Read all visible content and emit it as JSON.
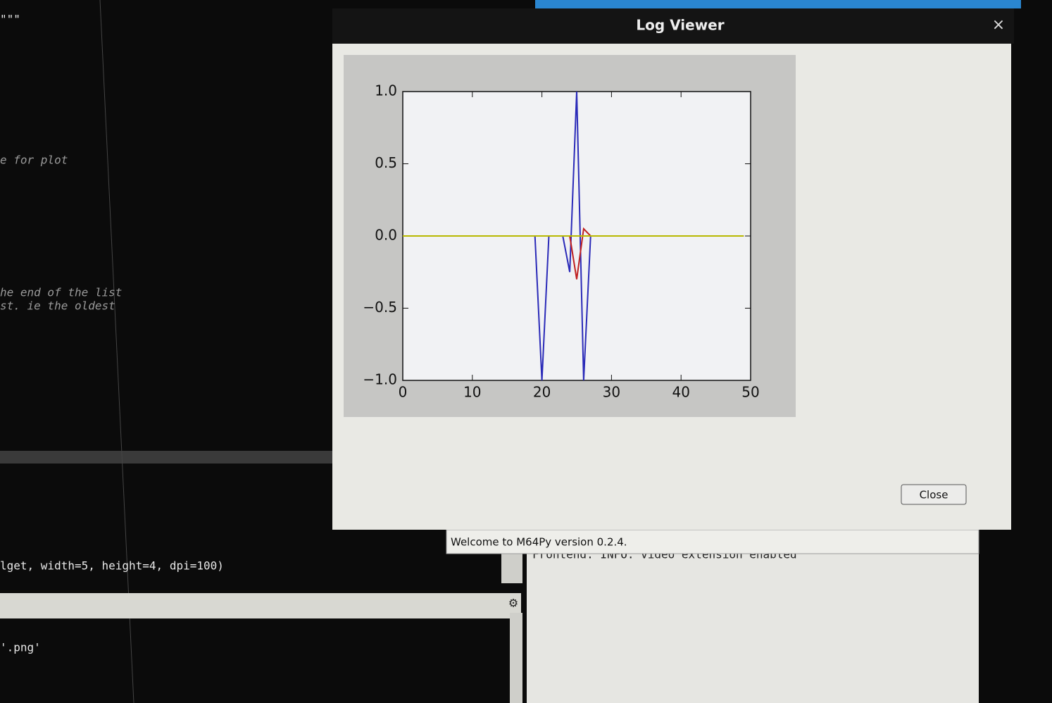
{
  "editor": {
    "lines": [
      "\"\"\"",
      "e for plot",
      "he end of the list",
      "st. ie the oldest",
      "lget, width=5, height=4, dpi=100)",
      "'.png'"
    ]
  },
  "window": {
    "title": "Log Viewer",
    "close_icon": "×",
    "close_button": "Close"
  },
  "chart_data": {
    "type": "line",
    "x": [
      0,
      1,
      2,
      3,
      4,
      5,
      6,
      7,
      8,
      9,
      10,
      11,
      12,
      13,
      14,
      15,
      16,
      17,
      18,
      19,
      20,
      21,
      22,
      23,
      24,
      25,
      26,
      27,
      28,
      29,
      30,
      31,
      32,
      33,
      34,
      35,
      36,
      37,
      38,
      39,
      40,
      41,
      42,
      43,
      44,
      45,
      46,
      47,
      48,
      49
    ],
    "series": [
      {
        "color": "#2a2ab8",
        "values": [
          0,
          0,
          0,
          0,
          0,
          0,
          0,
          0,
          0,
          0,
          0,
          0,
          0,
          0,
          0,
          0,
          0,
          0,
          0,
          0,
          -1,
          0,
          0,
          0,
          -0.25,
          1.0,
          -1.0,
          0,
          0,
          0,
          0,
          0,
          0,
          0,
          0,
          0,
          0,
          0,
          0,
          0,
          0,
          0,
          0,
          0,
          0,
          0,
          0,
          0,
          0,
          0
        ]
      },
      {
        "color": "#c02020",
        "values": [
          0,
          0,
          0,
          0,
          0,
          0,
          0,
          0,
          0,
          0,
          0,
          0,
          0,
          0,
          0,
          0,
          0,
          0,
          0,
          0,
          0,
          0,
          0,
          0,
          0,
          -0.3,
          0.05,
          0,
          0,
          0,
          0,
          0,
          0,
          0,
          0,
          0,
          0,
          0,
          0,
          0,
          0,
          0,
          0,
          0,
          0,
          0,
          0,
          0,
          0,
          0
        ]
      },
      {
        "color": "#b8b800",
        "values": [
          0,
          0,
          0,
          0,
          0,
          0,
          0,
          0,
          0,
          0,
          0,
          0,
          0,
          0,
          0,
          0,
          0,
          0,
          0,
          0,
          0,
          0,
          0,
          0,
          0,
          0,
          0,
          0,
          0,
          0,
          0,
          0,
          0,
          0,
          0,
          0,
          0,
          0,
          0,
          0,
          0,
          0,
          0,
          0,
          0,
          0,
          0,
          0,
          0,
          0
        ]
      }
    ],
    "xlim": [
      0,
      50
    ],
    "xticks": [
      0,
      10,
      20,
      30,
      40,
      50
    ],
    "ylim": [
      -1.0,
      1.0
    ],
    "yticks": [
      {
        "value": -1.0,
        "label": "−1.0"
      },
      {
        "value": -0.5,
        "label": "−0.5"
      },
      {
        "value": 0.0,
        "label": "0.0"
      },
      {
        "value": 0.5,
        "label": "0.5"
      },
      {
        "value": 1.0,
        "label": "1.0"
      }
    ],
    "grid": false
  },
  "status": "Welcome to M64Py version 0.2.4.",
  "log": [
    "Frontend: INFO: video extension enabled"
  ]
}
